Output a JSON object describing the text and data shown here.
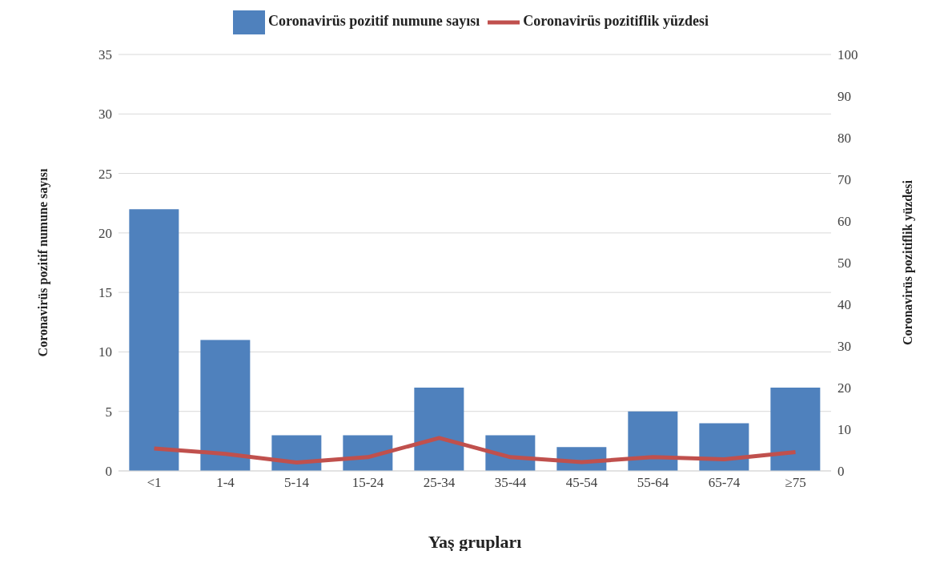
{
  "chart_data": {
    "type": "bar",
    "xlabel": "Yaş grupları",
    "ylabel": "Coronavirüs pozitif numune sayısı",
    "y2label": "Coronavirüs pozitiflik yüzdesi",
    "categories": [
      "<1",
      "1-4",
      "5-14",
      "15-24",
      "25-34",
      "35-44",
      "45-54",
      "55-64",
      "65-74",
      "≥75"
    ],
    "series": [
      {
        "name": "Coronavirüs pozitif numune sayısı",
        "color": "#4f81bd",
        "values": [
          22,
          11,
          3,
          3,
          7,
          3,
          2,
          5,
          4,
          7
        ]
      },
      {
        "name": "Coronavirüs pozitiflik yüzdesi",
        "type": "line",
        "axis": "y2",
        "color": "#c0504d",
        "values": [
          5.4,
          4.1,
          2.0,
          3.3,
          7.9,
          3.3,
          2.1,
          3.3,
          2.8,
          4.5
        ]
      }
    ],
    "ylim": [
      0,
      35
    ],
    "yticks": [
      0,
      5,
      10,
      15,
      20,
      25,
      30,
      35
    ],
    "y2lim": [
      0,
      100
    ],
    "y2ticks": [
      0,
      10,
      20,
      30,
      40,
      50,
      60,
      70,
      80,
      90,
      100
    ],
    "grid": "y",
    "legend": "top",
    "marker": "none"
  }
}
